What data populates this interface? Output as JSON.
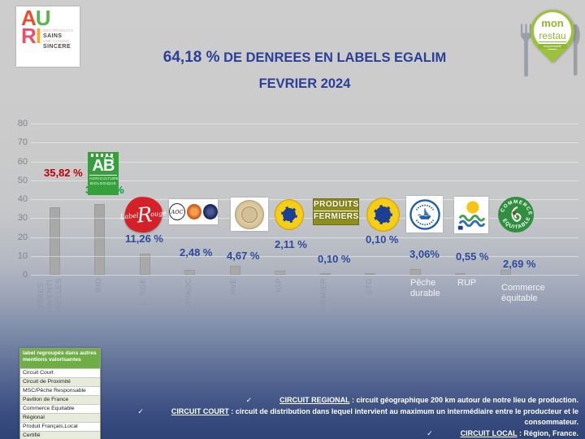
{
  "auri_logo": {
    "word_top_a": "A",
    "word_top_u": "U",
    "word_bottom_r": "R",
    "word_bottom_i": "I",
    "tagline": [
      "DES PRODUITS",
      "SAINS",
      "UNE CUISINE",
      "SINCERE"
    ]
  },
  "monrestau_logo": {
    "line1": "mon",
    "line2": "restau",
    "line3": "responsable"
  },
  "title": {
    "percent": "64,18 %",
    "rest": " DE DENREES EN LABELS EGALIM",
    "subtitle": "FEVRIER 2024"
  },
  "chart_data": {
    "type": "bar",
    "title": "64,18 % DE DENREES EN LABELS EGALIM",
    "subtitle": "FEVRIER 2024",
    "categories": [
      "DENREES CONVENTIONNELLES",
      "BIO",
      "L. RGE",
      "AOP/AOC",
      "HVE",
      "IGP",
      "FERMIER",
      "STG",
      "Pêche durable",
      "RUP",
      "Commerce équitable"
    ],
    "values": [
      35.82,
      37.34,
      11.26,
      2.48,
      4.67,
      2.11,
      0.1,
      0.1,
      3.06,
      0.55,
      2.69
    ],
    "value_labels": [
      "35,82 %",
      "37,34 %",
      "11,26 %",
      "2,48 %",
      "4,67 %",
      "2,11 %",
      "0,10 %",
      "0,10 %",
      "3,06%",
      "0,55 %",
      "2,69 %"
    ],
    "value_label_colors": [
      "#c00000",
      "#00a050",
      "#2d4a9d",
      "#2d4a9d",
      "#2d4a9d",
      "#2d4a9d",
      "#2d4a9d",
      "#2d4a9d",
      "#2d4a9d",
      "#2d4a9d",
      "#2d4a9d"
    ],
    "xlabel": "",
    "ylabel": "",
    "ylim": [
      0,
      80
    ],
    "yticks": [
      "0",
      "10",
      "20",
      "30",
      "40",
      "50",
      "60",
      "70",
      "80"
    ],
    "grid": true,
    "bar_color": "#a8a8a8",
    "legend_position": "none"
  },
  "axis_labels": {
    "cat1_lines": [
      "DENREES",
      "CONVENTI",
      "ONNELLES"
    ],
    "cat2": "BIO",
    "cat3": "L. RGE",
    "cat4": "AOP/AOC",
    "cat5": "HVE",
    "cat6": "IGP",
    "cat7": "FERMIER",
    "cat8": "STG",
    "cat9_line1": "Pêche",
    "cat9_line2": "durable",
    "cat10": "RUP",
    "cat11_line1": "Commerce",
    "cat11_line2": "équitable"
  },
  "label_logos": {
    "ab": {
      "letters": "AB",
      "sub1": "AGRICULTURE",
      "sub2": "BIOLOGIQUE"
    },
    "label_rouge": {
      "small_top": "Label",
      "big_letter": "R",
      "rest": "ouge"
    },
    "aoc": {
      "text": "AOC"
    },
    "fermiers": {
      "line1": "PRODUITS",
      "line2": "FERMIERS"
    },
    "commerce": {
      "top": "COMMERCE",
      "bottom": "ÉQUITABLE"
    }
  },
  "legend_table": {
    "header": "label regroupés dans autres mentions valorisantes",
    "rows": [
      "Circuit Court",
      "Circuit de Proximité",
      "MSC/Pêche Responsable",
      "Pavillon de France",
      "Commerce Equitable",
      "Régional",
      "Produit Français,Local",
      "Certifié"
    ]
  },
  "footnotes": [
    {
      "check": "✓",
      "term": "CIRCUIT REGIONAL",
      "desc": " : circuit géographique 200 km autour de notre lieu de production."
    },
    {
      "check": "✓",
      "term": "CIRCUIT COURT",
      "desc": " : circuit de distribution dans lequel intervient au maximum un intermédiaire entre le producteur et le consommateur."
    },
    {
      "check": "✓",
      "term": "CIRCUIT LOCAL",
      "desc": " : Région, France."
    }
  ]
}
